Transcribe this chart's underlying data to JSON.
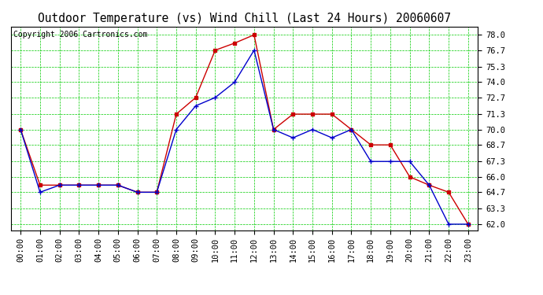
{
  "title": "Outdoor Temperature (vs) Wind Chill (Last 24 Hours) 20060607",
  "copyright": "Copyright 2006 Cartronics.com",
  "hours": [
    "00:00",
    "01:00",
    "02:00",
    "03:00",
    "04:00",
    "05:00",
    "06:00",
    "07:00",
    "08:00",
    "09:00",
    "10:00",
    "11:00",
    "12:00",
    "13:00",
    "14:00",
    "15:00",
    "16:00",
    "17:00",
    "18:00",
    "19:00",
    "20:00",
    "21:00",
    "22:00",
    "23:00"
  ],
  "temp": [
    70.0,
    65.3,
    65.3,
    65.3,
    65.3,
    65.3,
    64.7,
    64.7,
    71.3,
    72.7,
    76.7,
    77.3,
    78.0,
    70.0,
    71.3,
    71.3,
    71.3,
    70.0,
    68.7,
    68.7,
    66.0,
    65.3,
    64.7,
    62.0
  ],
  "windchill": [
    70.0,
    64.7,
    65.3,
    65.3,
    65.3,
    65.3,
    64.7,
    64.7,
    70.0,
    72.0,
    72.7,
    74.0,
    76.7,
    70.0,
    69.3,
    70.0,
    69.3,
    70.0,
    67.3,
    67.3,
    67.3,
    65.3,
    62.0,
    62.0
  ],
  "temp_color": "#cc0000",
  "windchill_color": "#0000cc",
  "ylim_min": 61.5,
  "ylim_max": 78.7,
  "yticks": [
    62.0,
    63.3,
    64.7,
    66.0,
    67.3,
    68.7,
    70.0,
    71.3,
    72.7,
    74.0,
    75.3,
    76.7,
    78.0
  ],
  "bg_color": "#ffffff",
  "plot_bg_color": "#ffffff",
  "grid_color": "#00cc00",
  "title_fontsize": 10.5,
  "copyright_fontsize": 7,
  "tick_fontsize": 7.5
}
